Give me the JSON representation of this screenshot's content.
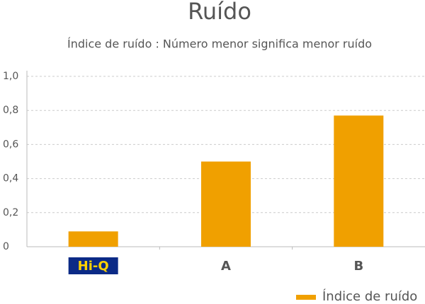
{
  "chart_data": {
    "type": "bar",
    "title": "Ruído",
    "subtitle": "Índice de ruído : Número menor significa menor ruído",
    "categories": [
      "Hi-Q",
      "A",
      "B"
    ],
    "series": [
      {
        "name": "Índice de ruído",
        "color": "#f0a000",
        "values": [
          0.09,
          0.5,
          0.77
        ]
      }
    ],
    "ylim": [
      0,
      1
    ],
    "yticks": [
      0,
      {
        "value": 0.2,
        "label": "0,2"
      },
      {
        "value": 0.4,
        "label": "0,4"
      },
      {
        "value": 0.6,
        "label": "0,6"
      },
      {
        "value": 0.8,
        "label": "0,8"
      },
      {
        "value": 1,
        "label": "1,0"
      }
    ],
    "grid": true,
    "legend": "bottom-right"
  }
}
